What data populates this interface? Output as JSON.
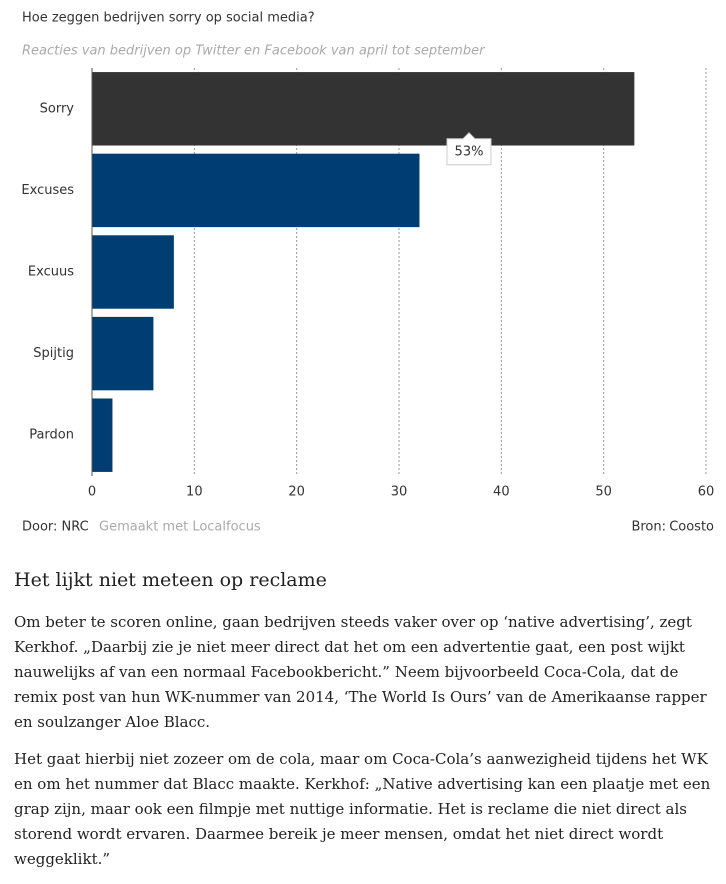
{
  "chart_data": {
    "type": "bar",
    "orientation": "horizontal",
    "title": "Hoe zeggen bedrijven sorry op social media?",
    "subtitle": "Reacties van bedrijven op Twitter en Facebook van april tot september",
    "categories": [
      "Sorry",
      "Excuses",
      "Excuus",
      "Spijtig",
      "Pardon"
    ],
    "values": [
      53,
      32,
      8,
      6,
      2
    ],
    "value_labels": [
      "53%",
      null,
      null,
      null,
      null
    ],
    "colors": [
      "#333333",
      "#003d73",
      "#003d73",
      "#003d73",
      "#003d73"
    ],
    "xlim": [
      0,
      60
    ],
    "xticks": [
      0,
      10,
      20,
      30,
      40,
      50,
      60
    ],
    "grid": true,
    "footer": {
      "author": "Door: NRC",
      "made_with": "Gemaakt met Localfocus",
      "source_label": "Bron:",
      "source": "Coosto"
    }
  },
  "article": {
    "heading": "Het lijkt niet meteen op reclame",
    "paragraphs": [
      "Om beter te scoren online, gaan bedrijven steeds vaker over op ‘native advertising’, zegt Kerkhof. „Daarbij zie je niet meer direct dat het om een advertentie gaat, een post wijkt nauwelijks af van een normaal Facebookbericht.” Neem bijvoorbeeld Coca-Cola, dat de remix post van hun WK-nummer van 2014, ‘The World Is Ours’ van de Amerikaanse rapper en soulzanger Aloe Blacc.",
      "Het gaat hierbij niet zozeer om de cola, maar om Coca-Cola’s aanwezigheid tijdens het WK en om het nummer dat Blacc maakte. Kerkhof: „Native advertising kan een plaatje met een grap zijn, maar ook een filmpje met nuttige informatie. Het is reclame die niet direct als storend wordt ervaren. Daarmee bereik je meer mensen, omdat het niet direct wordt weggeklikt.”"
    ]
  }
}
